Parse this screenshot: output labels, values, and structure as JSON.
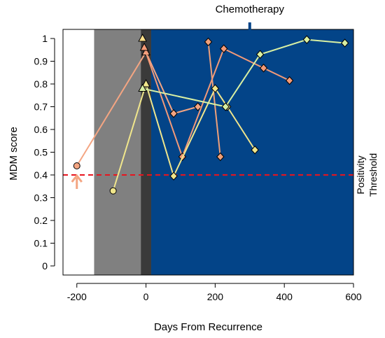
{
  "chart_data": {
    "type": "line",
    "title": "",
    "xlabel": "Days From Recurrence",
    "ylabel": "MDM score",
    "xlim": [
      -240,
      600
    ],
    "ylim": [
      -0.04,
      1.04
    ],
    "x_ticks": [
      -200,
      0,
      200,
      400,
      600
    ],
    "x_tick_labels": [
      "-200",
      "0",
      "200",
      "400",
      "600"
    ],
    "y_ticks": [
      0,
      0.1,
      0.2,
      0.3,
      0.4,
      0.5,
      0.6,
      0.7,
      0.8,
      0.9,
      1
    ],
    "y_tick_labels": [
      "0",
      "0.1",
      "0.2",
      "0.3",
      "0.4",
      "0.5",
      "0.6",
      "0.7",
      "0.8",
      "0.9",
      "1"
    ],
    "grid": false,
    "background_regions": [
      {
        "x0": -240,
        "x1": -150,
        "color": "#ffffff"
      },
      {
        "x0": -150,
        "x1": -15,
        "color": "#808080"
      },
      {
        "x0": -15,
        "x1": 15,
        "color": "#3a3a3a"
      },
      {
        "x0": 15,
        "x1": 600,
        "color": "#034488"
      }
    ],
    "threshold": {
      "value": 0.4,
      "label_line1": "Positivity",
      "label_line2": "Threshold",
      "color": "#e8141e"
    },
    "top_annotation": {
      "text": "Chemotherapy",
      "x": 300,
      "color": "#034488"
    },
    "arrow_marker": {
      "x": -200,
      "color": "#f4a582"
    },
    "series": [
      {
        "color": "#f4a582",
        "x": [
          -200,
          0,
          80,
          150
        ],
        "y": [
          0.44,
          0.94,
          0.67,
          0.7
        ],
        "markers": [
          "circle",
          "triangle",
          "diamond",
          "diamond"
        ]
      },
      {
        "color": "#eea07a",
        "x": [
          180,
          215
        ],
        "y": [
          0.985,
          0.48
        ],
        "markers": [
          "diamond",
          "diamond"
        ]
      },
      {
        "color": "#f39a78",
        "x": [
          -5,
          105,
          225,
          340,
          415
        ],
        "y": [
          0.96,
          0.48,
          0.955,
          0.87,
          0.815
        ],
        "markers": [
          "triangle",
          "diamond",
          "diamond",
          "diamond",
          "diamond"
        ]
      },
      {
        "color": "#f0e68c",
        "x": [
          -95,
          0,
          80,
          200,
          235,
          315
        ],
        "y": [
          0.33,
          0.8,
          0.395,
          0.78,
          0.7,
          0.51
        ],
        "markers": [
          "circle",
          "triangle",
          "diamond",
          "diamond",
          "diamond",
          "diamond"
        ]
      },
      {
        "color": "#d9f0a3",
        "x": [
          -10,
          230,
          330,
          465,
          575
        ],
        "y": [
          0.78,
          0.7,
          0.93,
          0.995,
          0.98
        ],
        "markers": [
          "triangle",
          "diamond",
          "diamond",
          "diamond",
          "diamond"
        ]
      },
      {
        "color": "#fee08b",
        "x": [
          -10
        ],
        "y": [
          1.0
        ],
        "markers": [
          "triangle"
        ]
      }
    ]
  }
}
